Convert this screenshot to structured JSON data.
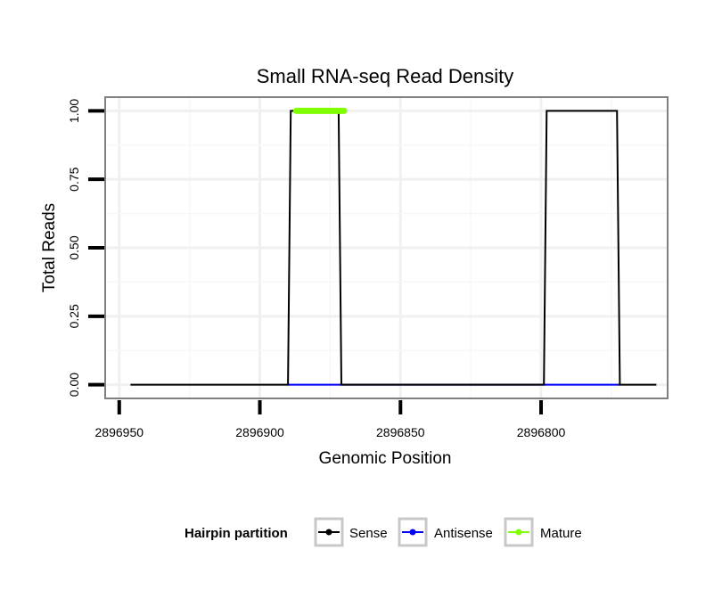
{
  "chart_data": {
    "type": "line",
    "title": "Small RNA-seq Read Density",
    "xlabel": "Genomic Position",
    "ylabel": "Total Reads",
    "x_reversed": true,
    "xlim": [
      2896955,
      2896755
    ],
    "ylim": [
      -0.05,
      1.05
    ],
    "x_ticks": [
      2896950,
      2896900,
      2896850,
      2896800
    ],
    "x_tick_labels": [
      "2896950",
      "2896900",
      "2896850",
      "2896800"
    ],
    "y_ticks": [
      0,
      0.25,
      0.5,
      0.75,
      1.0
    ],
    "y_tick_labels": [
      "0.00",
      "0.25",
      "0.50",
      "0.75",
      "1.00"
    ],
    "grid": true,
    "legend": {
      "title": "Hairpin partition",
      "position": "bottom",
      "entries": [
        {
          "label": "Sense",
          "color": "#000000"
        },
        {
          "label": "Antisense",
          "color": "#0000ff"
        },
        {
          "label": "Mature",
          "color": "#7fff00"
        }
      ]
    },
    "series": [
      {
        "name": "Sense",
        "color": "#000000",
        "x": [
          2896946,
          2896890,
          2896889,
          2896872,
          2896871,
          2896799,
          2896798,
          2896773,
          2896772,
          2896759
        ],
        "y": [
          0,
          0,
          1,
          1,
          0,
          0,
          1,
          1,
          0,
          0
        ]
      },
      {
        "name": "Antisense",
        "color": "#0000ff",
        "x": [
          2896890,
          2896871,
          2896799,
          2896772
        ],
        "y": [
          0,
          0,
          0,
          0
        ]
      },
      {
        "name": "Mature",
        "color": "#7fff00",
        "x": [
          2896887,
          2896870
        ],
        "y": [
          1,
          1
        ]
      }
    ]
  }
}
